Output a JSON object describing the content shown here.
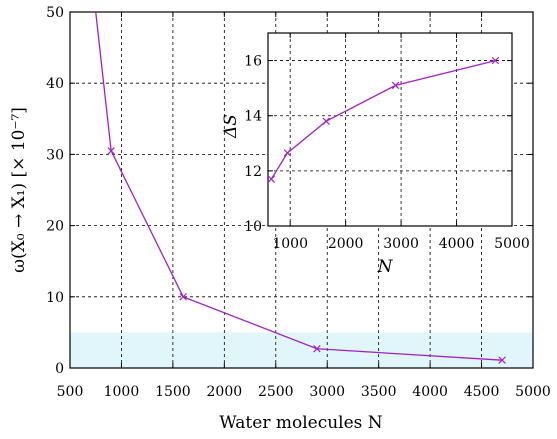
{
  "chart_data": [
    {
      "type": "line",
      "title": "",
      "xlabel": "Water molecules N",
      "ylabel": "ω(X₀ → X₁) [× 10⁻⁷]",
      "xlim": [
        500,
        5000
      ],
      "ylim": [
        0,
        50
      ],
      "x_ticks": [
        "500",
        "1000",
        "1500",
        "2000",
        "2500",
        "3000",
        "3500",
        "4000",
        "4500",
        "5000"
      ],
      "y_ticks": [
        "0",
        "10",
        "20",
        "30",
        "40",
        "50"
      ],
      "grid": true,
      "series_color": "#a020c8",
      "shaded_band": {
        "y_from": 0,
        "y_to": 5,
        "color": "#e0f6fa"
      },
      "line_points": [
        {
          "x": 750,
          "y": 50
        }
      ],
      "series": [
        {
          "name": "",
          "marker": "x",
          "points": [
            {
              "x": 900,
              "y": 30.5
            },
            {
              "x": 1600,
              "y": 10
            },
            {
              "x": 2900,
              "y": 2.7
            },
            {
              "x": 4700,
              "y": 1.1
            }
          ]
        }
      ]
    },
    {
      "type": "line",
      "title": "",
      "xlabel": "N",
      "ylabel": "ΔS",
      "xlim": [
        600,
        5000
      ],
      "ylim": [
        10,
        17
      ],
      "x_ticks": [
        "1000",
        "2000",
        "3000",
        "4000",
        "5000"
      ],
      "y_ticks": [
        "10",
        "12",
        "14",
        "16"
      ],
      "grid": true,
      "series_color": "#a020c8",
      "series": [
        {
          "name": "",
          "marker": "x",
          "points": [
            {
              "x": 660,
              "y": 11.7
            },
            {
              "x": 950,
              "y": 12.65
            },
            {
              "x": 1650,
              "y": 13.8
            },
            {
              "x": 2900,
              "y": 15.1
            },
            {
              "x": 4700,
              "y": 16.0
            }
          ]
        }
      ]
    }
  ]
}
